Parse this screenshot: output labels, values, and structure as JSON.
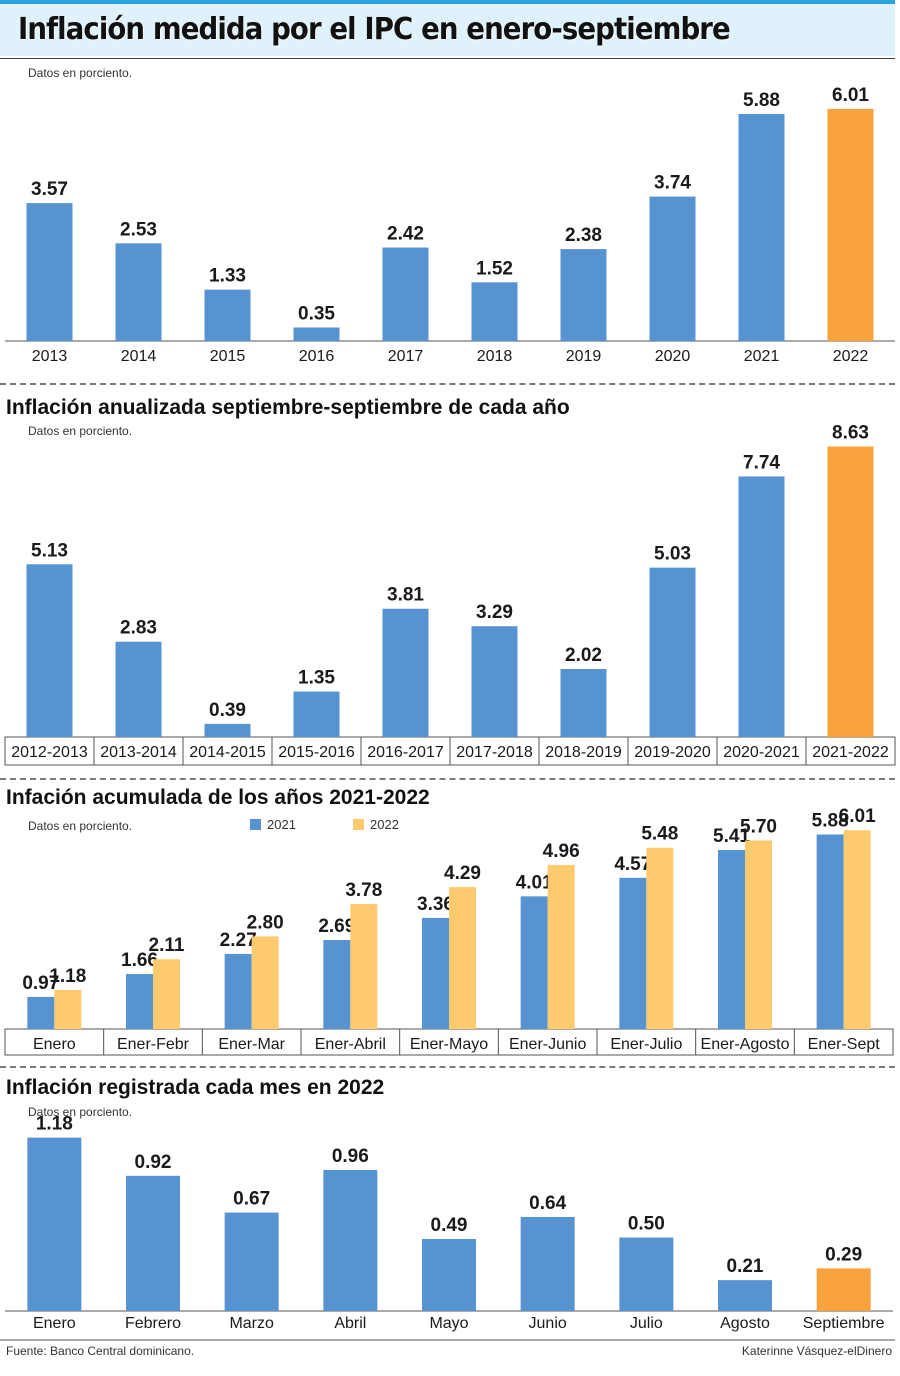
{
  "header": {
    "title": "Inflación medida por el IPC en enero-septiembre"
  },
  "unit_note": "Datos en porciento.",
  "footer": {
    "source": "Fuente: Banco Central dominicano.",
    "credit": "Katerinne Vásquez-elDinero"
  },
  "colors": {
    "blue": "#5793d0",
    "orange": "#f7a23b",
    "yellow": "#fdcb6e",
    "title_band": "#dff1fb",
    "title_band_accent": "#2aa3e0"
  },
  "chart_data": [
    {
      "type": "bar",
      "title": "",
      "categories": [
        "2013",
        "2014",
        "2015",
        "2016",
        "2017",
        "2018",
        "2019",
        "2020",
        "2021",
        "2022"
      ],
      "values": [
        3.57,
        2.53,
        1.33,
        0.35,
        2.42,
        1.52,
        2.38,
        3.74,
        5.88,
        6.01
      ],
      "labels": [
        "3.57",
        "2.53",
        "1.33",
        "0.35",
        "2.42",
        "1.52",
        "2.38",
        "3.74",
        "5.88",
        "6.01"
      ],
      "highlight_index": 9,
      "ylim": [
        0,
        6.5
      ],
      "grid": false
    },
    {
      "type": "bar",
      "title": "Inflación anualizada septiembre-septiembre de cada año",
      "categories": [
        "2012-2013",
        "2013-2014",
        "2014-2015",
        "2015-2016",
        "2016-2017",
        "2017-2018",
        "2018-2019",
        "2019-2020",
        "2020-2021",
        "2021-2022"
      ],
      "values": [
        5.13,
        2.83,
        0.39,
        1.35,
        3.81,
        3.29,
        2.02,
        5.03,
        7.74,
        8.63
      ],
      "labels": [
        "5.13",
        "2.83",
        "0.39",
        "1.35",
        "3.81",
        "3.29",
        "2.02",
        "5.03",
        "7.74",
        "8.63"
      ],
      "highlight_index": 9,
      "ylim": [
        0,
        9
      ],
      "grid": false
    },
    {
      "type": "bar",
      "title": "Infación acumulada de los años 2021-2022",
      "categories": [
        "Enero",
        "Ener-Febr",
        "Ener-Mar",
        "Ener-Abril",
        "Ener-Mayo",
        "Ener-Junio",
        "Ener-Julio",
        "Ener-Agosto",
        "Ener-Sept"
      ],
      "series": [
        {
          "name": "2021",
          "values": [
            0.97,
            1.66,
            2.27,
            2.69,
            3.36,
            4.01,
            4.57,
            5.41,
            5.88
          ],
          "labels": [
            "0.97",
            "1.66",
            "2.27",
            "2.69",
            "3.36",
            "4.01",
            "4.57",
            "5.41",
            "5.88"
          ]
        },
        {
          "name": "2022",
          "values": [
            1.18,
            2.11,
            2.8,
            3.78,
            4.29,
            4.96,
            5.48,
            5.7,
            6.01
          ],
          "labels": [
            "1.18",
            "2.11",
            "2.80",
            "3.78",
            "4.29",
            "4.96",
            "5.48",
            "5.70",
            "6.01"
          ]
        }
      ],
      "legend_position": "top",
      "ylim": [
        0,
        6.5
      ],
      "grid": false
    },
    {
      "type": "bar",
      "title": "Inflación registrada cada mes en 2022",
      "categories": [
        "Enero",
        "Febrero",
        "Marzo",
        "Abril",
        "Mayo",
        "Junio",
        "Julio",
        "Agosto",
        "Septiembre"
      ],
      "values": [
        1.18,
        0.92,
        0.67,
        0.96,
        0.49,
        0.64,
        0.5,
        0.21,
        0.29
      ],
      "labels": [
        "1.18",
        "0.92",
        "0.67",
        "0.96",
        "0.49",
        "0.64",
        "0.50",
        "0.21",
        "0.29"
      ],
      "highlight_index": 8,
      "ylim": [
        0,
        1.3
      ],
      "grid": false
    }
  ]
}
